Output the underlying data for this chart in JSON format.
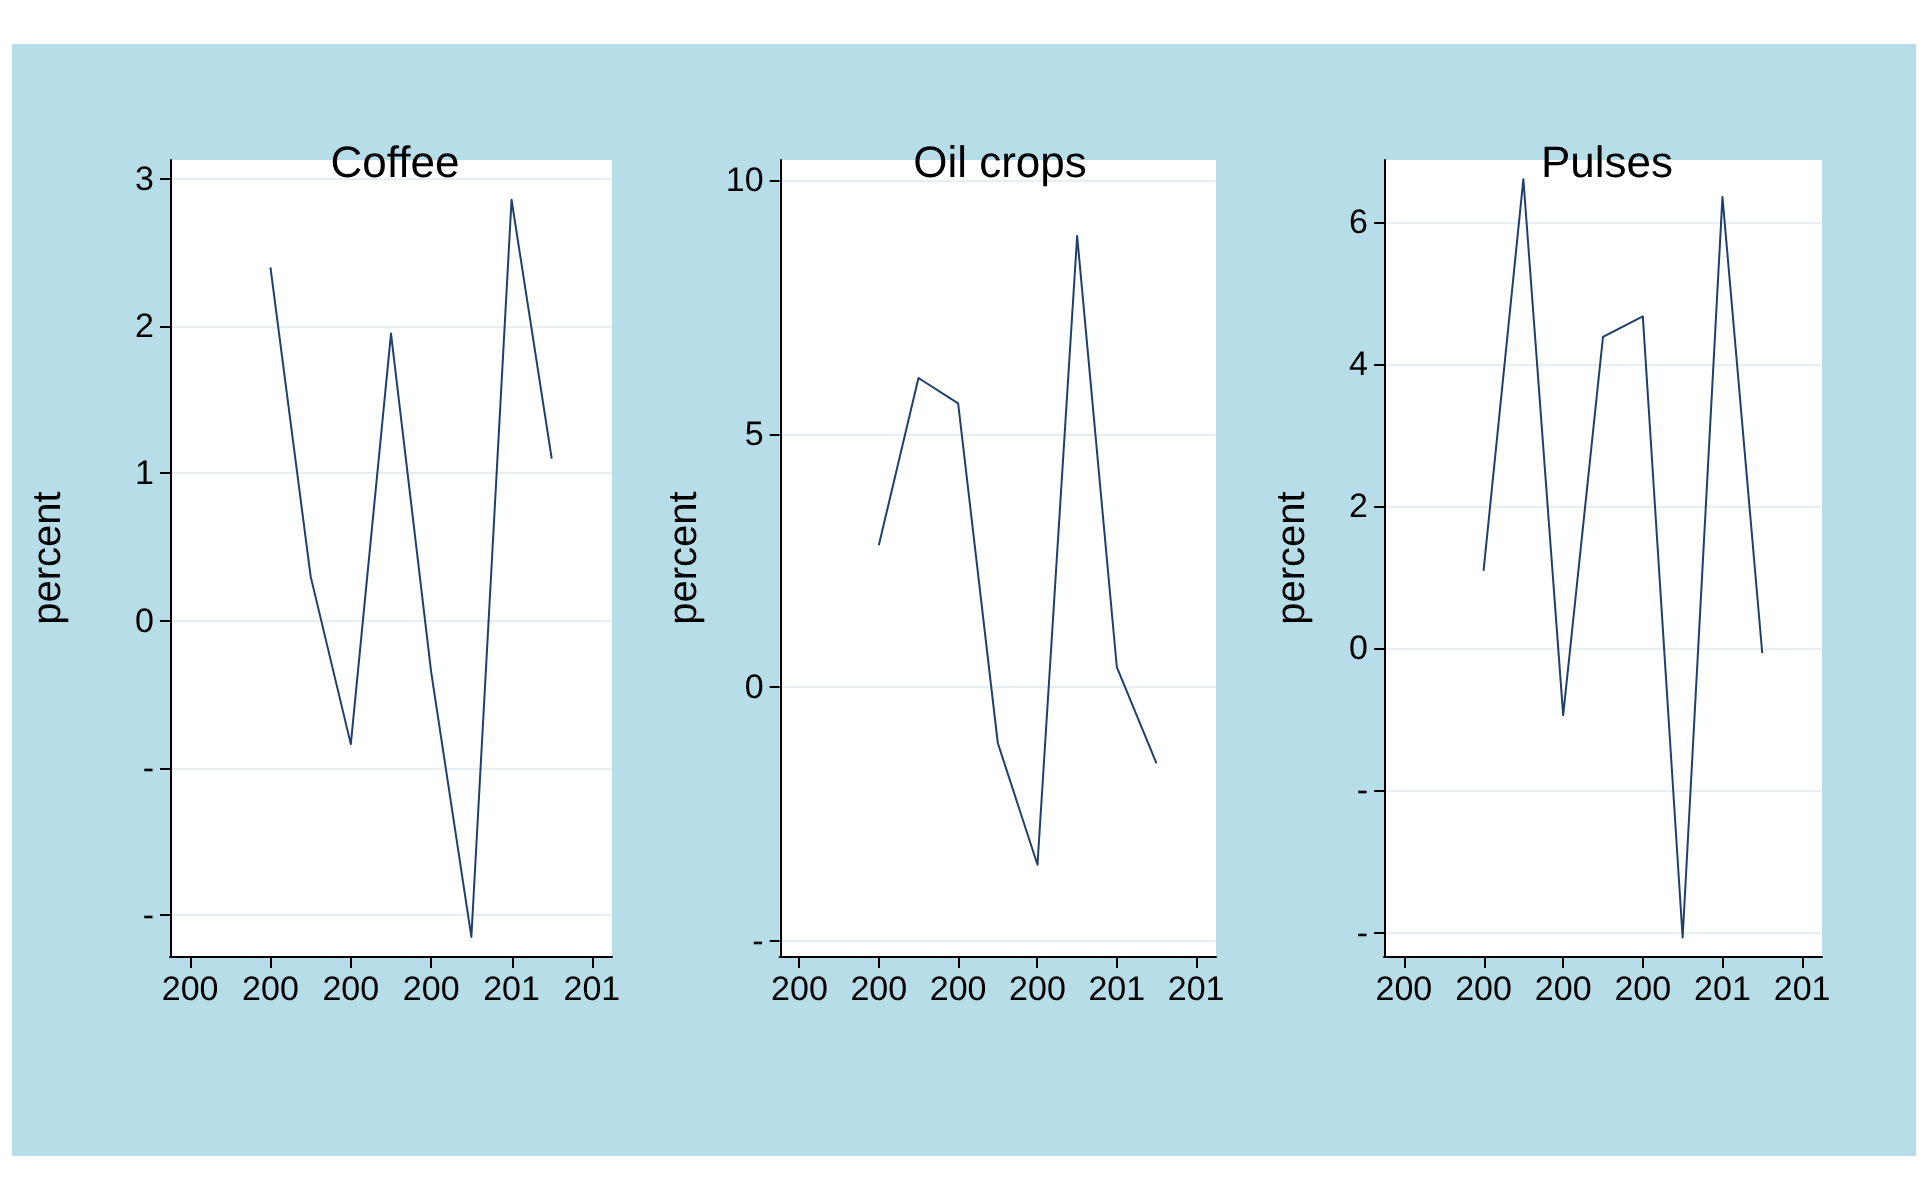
{
  "chart_data": [
    {
      "type": "line",
      "title": "Coffee",
      "ylabel": "percent",
      "categories": [
        "200",
        null,
        "200",
        null,
        "200",
        null,
        "200",
        null,
        "201",
        null,
        "201"
      ],
      "series": [
        {
          "color": "#1f3f6e",
          "values": [
            null,
            null,
            2.4,
            0.3,
            -0.84,
            1.95,
            -0.35,
            -2.15,
            2.86,
            1.1,
            null
          ]
        }
      ],
      "ylim": [
        -2.28,
        3.13
      ],
      "yticks": [
        {
          "value": -2,
          "label": "-"
        },
        {
          "value": -1,
          "label": "-"
        },
        0,
        1,
        2,
        3
      ],
      "grid": "y"
    },
    {
      "type": "line",
      "title": "Oil crops",
      "ylabel": "percent",
      "categories": [
        "200",
        null,
        "200",
        null,
        "200",
        null,
        "200",
        null,
        "201",
        null,
        "201"
      ],
      "series": [
        {
          "color": "#1f3f6e",
          "values": [
            null,
            null,
            2.8,
            6.1,
            5.6,
            -1.1,
            -3.5,
            8.9,
            0.4,
            -1.5,
            null
          ]
        }
      ],
      "ylim": [
        -5.3,
        10.4
      ],
      "yticks": [
        {
          "value": -5,
          "label": "-"
        },
        0,
        5,
        10
      ],
      "grid": "y"
    },
    {
      "type": "line",
      "title": "Pulses",
      "ylabel": "percent",
      "categories": [
        "200",
        null,
        "200",
        null,
        "200",
        null,
        "200",
        null,
        "201",
        null,
        "201"
      ],
      "series": [
        {
          "color": "#1f3f6e",
          "values": [
            null,
            null,
            1.09,
            6.6,
            -0.94,
            4.38,
            4.67,
            -4.07,
            6.35,
            -0.07,
            null
          ]
        }
      ],
      "ylim": [
        -4.33,
        6.87
      ],
      "yticks": [
        {
          "value": -4,
          "label": "-"
        },
        {
          "value": -2,
          "label": "-"
        },
        0,
        2,
        4,
        6
      ],
      "grid": "y"
    }
  ]
}
